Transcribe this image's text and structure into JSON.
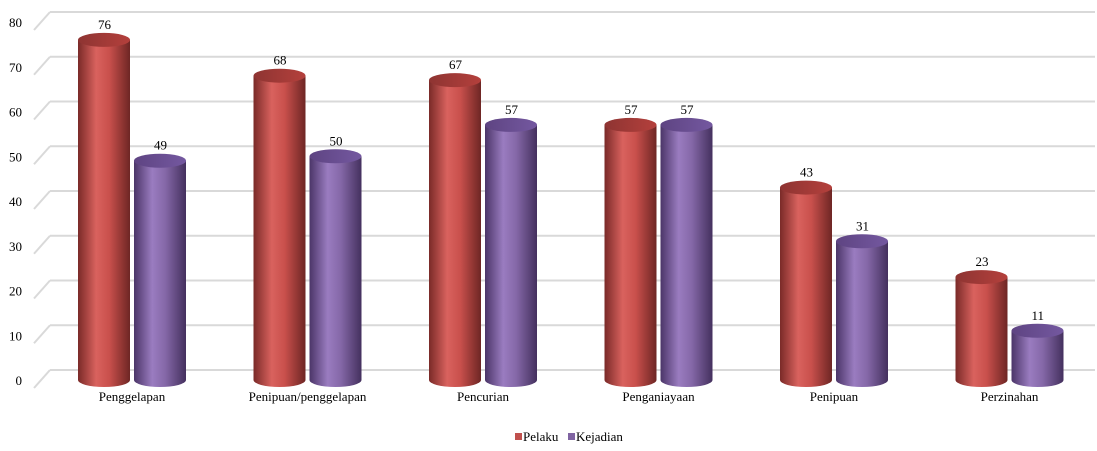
{
  "chart_data": {
    "type": "bar",
    "categories": [
      "Penggelapan",
      "Penipuan/penggelapan",
      "Pencurian",
      "Penganiayaan",
      "Penipuan",
      "Perzinahan"
    ],
    "series": [
      {
        "name": "Pelaku",
        "values": [
          76,
          68,
          67,
          57,
          43,
          23
        ],
        "color": "#c0504d"
      },
      {
        "name": "Kejadian",
        "values": [
          49,
          50,
          57,
          57,
          31,
          11
        ],
        "color": "#8064a2"
      }
    ],
    "ylim": [
      0,
      80
    ],
    "yticks": [
      0,
      10,
      20,
      30,
      40,
      50,
      60,
      70,
      80
    ],
    "grid": true,
    "legend_position": "bottom",
    "bar_shape": "3d-cylinder"
  }
}
